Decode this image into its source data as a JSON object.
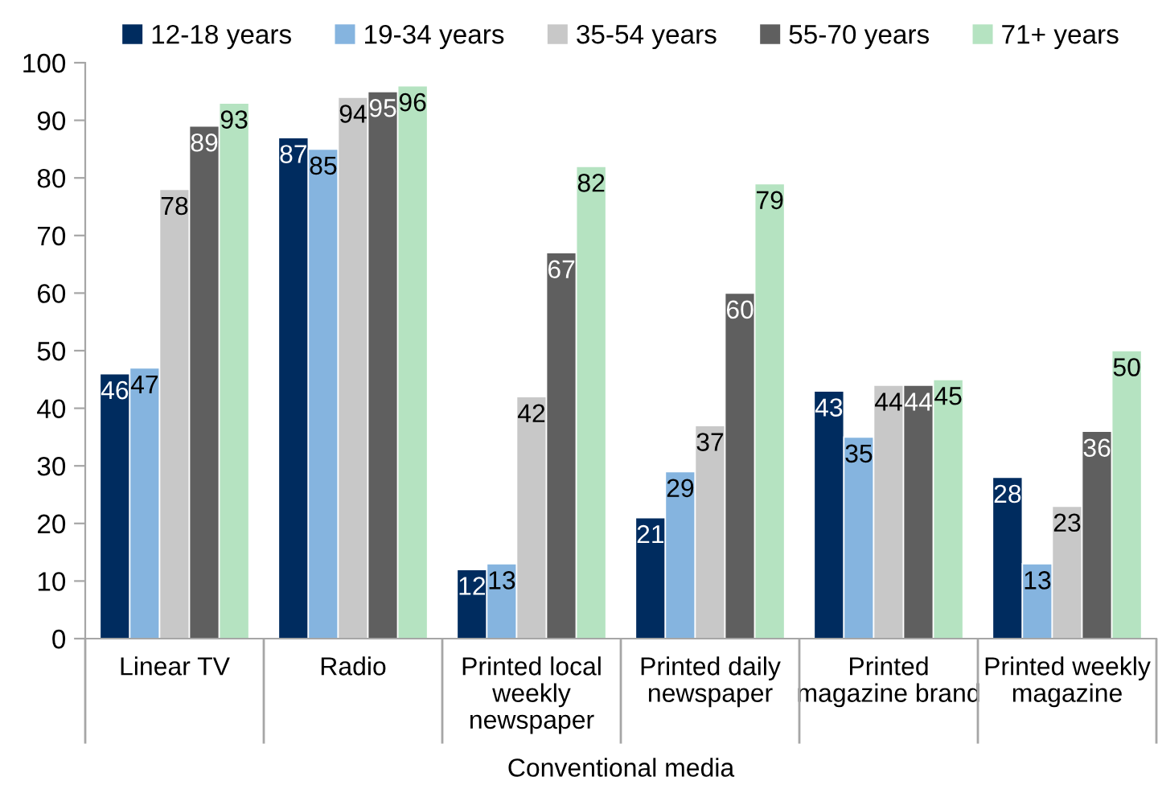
{
  "chart_data": {
    "type": "bar",
    "categories": [
      "Linear TV",
      "Radio",
      "Printed local\nweekly\nnewspaper",
      "Printed daily\nnewspaper",
      "Printed\nmagazine brand",
      "Printed weekly\nmagazine"
    ],
    "series": [
      {
        "name": "12-18 years",
        "color": "#002c5f",
        "values": [
          46,
          87,
          12,
          21,
          43,
          28
        ]
      },
      {
        "name": "19-34 years",
        "color": "#85b4df",
        "values": [
          47,
          85,
          13,
          29,
          35,
          13
        ]
      },
      {
        "name": "35-54 years",
        "color": "#c8c8c8",
        "values": [
          78,
          94,
          42,
          37,
          44,
          23
        ]
      },
      {
        "name": "55-70 years",
        "color": "#5f5f5f",
        "values": [
          89,
          95,
          67,
          60,
          44,
          36
        ]
      },
      {
        "name": "71+ years",
        "color": "#b5e3c1",
        "values": [
          93,
          96,
          82,
          79,
          45,
          50
        ]
      }
    ],
    "xlabel": "Conventional media",
    "ylim": [
      0,
      100
    ],
    "yticks": [
      0,
      10,
      20,
      30,
      40,
      50,
      60,
      70,
      80,
      90,
      100
    ],
    "data_labels": true,
    "legend": "top"
  }
}
